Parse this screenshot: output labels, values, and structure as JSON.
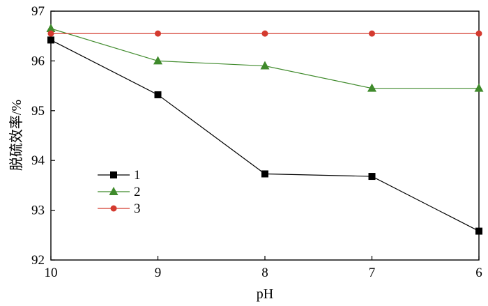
{
  "chart_data": {
    "type": "line",
    "title": "",
    "xlabel": "pH",
    "ylabel": "脱硫效率/%",
    "x": [
      10,
      9,
      8,
      7,
      6
    ],
    "xlim": [
      10,
      6
    ],
    "ylim": [
      92,
      97
    ],
    "x_ticks": [
      "10",
      "9",
      "8",
      "7",
      "6"
    ],
    "y_ticks": [
      "92",
      "93",
      "94",
      "95",
      "96",
      "97"
    ],
    "legend_position": "left",
    "series": [
      {
        "name": "1",
        "marker": "square",
        "color": "#000000",
        "values": [
          96.42,
          95.32,
          93.73,
          93.68,
          92.58
        ]
      },
      {
        "name": "2",
        "marker": "triangle",
        "color": "#3f8a2b",
        "values": [
          96.65,
          96.0,
          95.9,
          95.45,
          95.45
        ]
      },
      {
        "name": "3",
        "marker": "circle",
        "color": "#d43a2f",
        "values": [
          96.55,
          96.55,
          96.55,
          96.55,
          96.55
        ]
      }
    ]
  }
}
